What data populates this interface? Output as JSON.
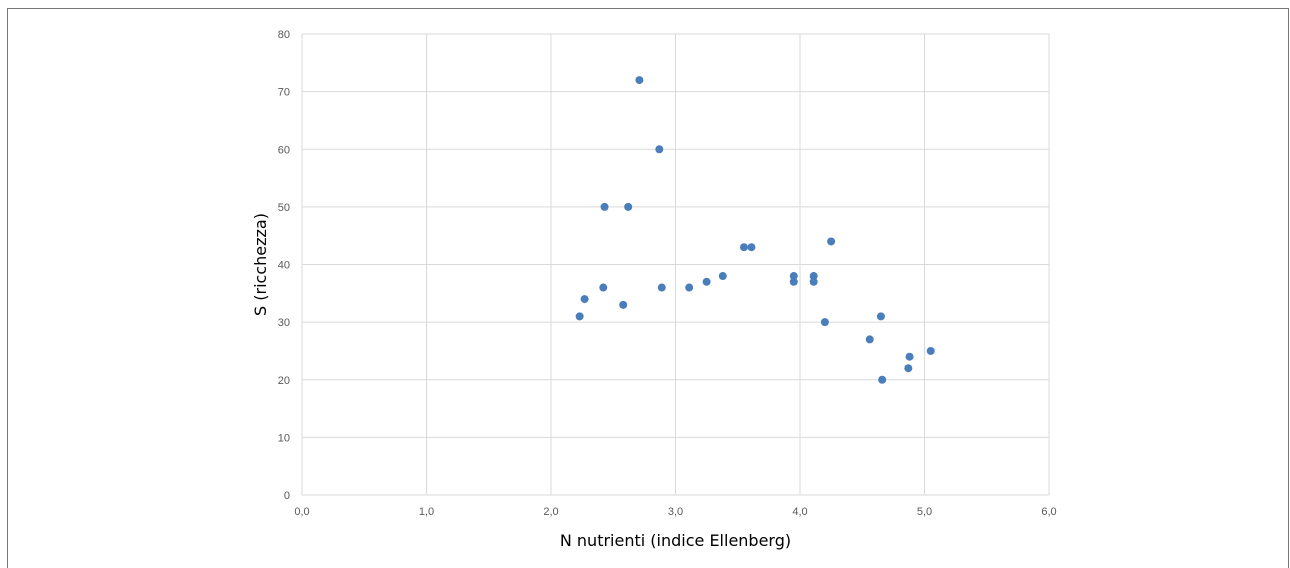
{
  "chart_data": {
    "type": "scatter",
    "title": "",
    "xlabel": "N nutrienti (indice Ellenberg)",
    "ylabel": "S (ricchezza)",
    "xlim": [
      0,
      6
    ],
    "ylim": [
      0,
      80
    ],
    "x_ticks": [
      "0,0",
      "1,0",
      "2,0",
      "3,0",
      "4,0",
      "5,0",
      "6,0"
    ],
    "y_ticks": [
      "0",
      "10",
      "20",
      "30",
      "40",
      "50",
      "60",
      "70",
      "80"
    ],
    "grid": true,
    "legend": "none",
    "colors": {
      "marker": "#4a7ebb",
      "grid": "#d9d9d9",
      "tick_text": "#595959"
    },
    "series": [
      {
        "points": [
          {
            "x": 2.23,
            "y": 31
          },
          {
            "x": 2.27,
            "y": 34
          },
          {
            "x": 2.42,
            "y": 36
          },
          {
            "x": 2.43,
            "y": 50
          },
          {
            "x": 2.58,
            "y": 33
          },
          {
            "x": 2.62,
            "y": 50
          },
          {
            "x": 2.71,
            "y": 72
          },
          {
            "x": 2.87,
            "y": 60
          },
          {
            "x": 2.89,
            "y": 36
          },
          {
            "x": 3.11,
            "y": 36
          },
          {
            "x": 3.25,
            "y": 37
          },
          {
            "x": 3.38,
            "y": 38
          },
          {
            "x": 3.55,
            "y": 43
          },
          {
            "x": 3.61,
            "y": 43
          },
          {
            "x": 3.95,
            "y": 38
          },
          {
            "x": 3.95,
            "y": 37
          },
          {
            "x": 4.11,
            "y": 38
          },
          {
            "x": 4.11,
            "y": 37
          },
          {
            "x": 4.2,
            "y": 30
          },
          {
            "x": 4.25,
            "y": 44
          },
          {
            "x": 4.56,
            "y": 27
          },
          {
            "x": 4.65,
            "y": 31
          },
          {
            "x": 4.66,
            "y": 20
          },
          {
            "x": 4.87,
            "y": 22
          },
          {
            "x": 4.88,
            "y": 24
          },
          {
            "x": 5.05,
            "y": 25
          }
        ]
      }
    ]
  }
}
